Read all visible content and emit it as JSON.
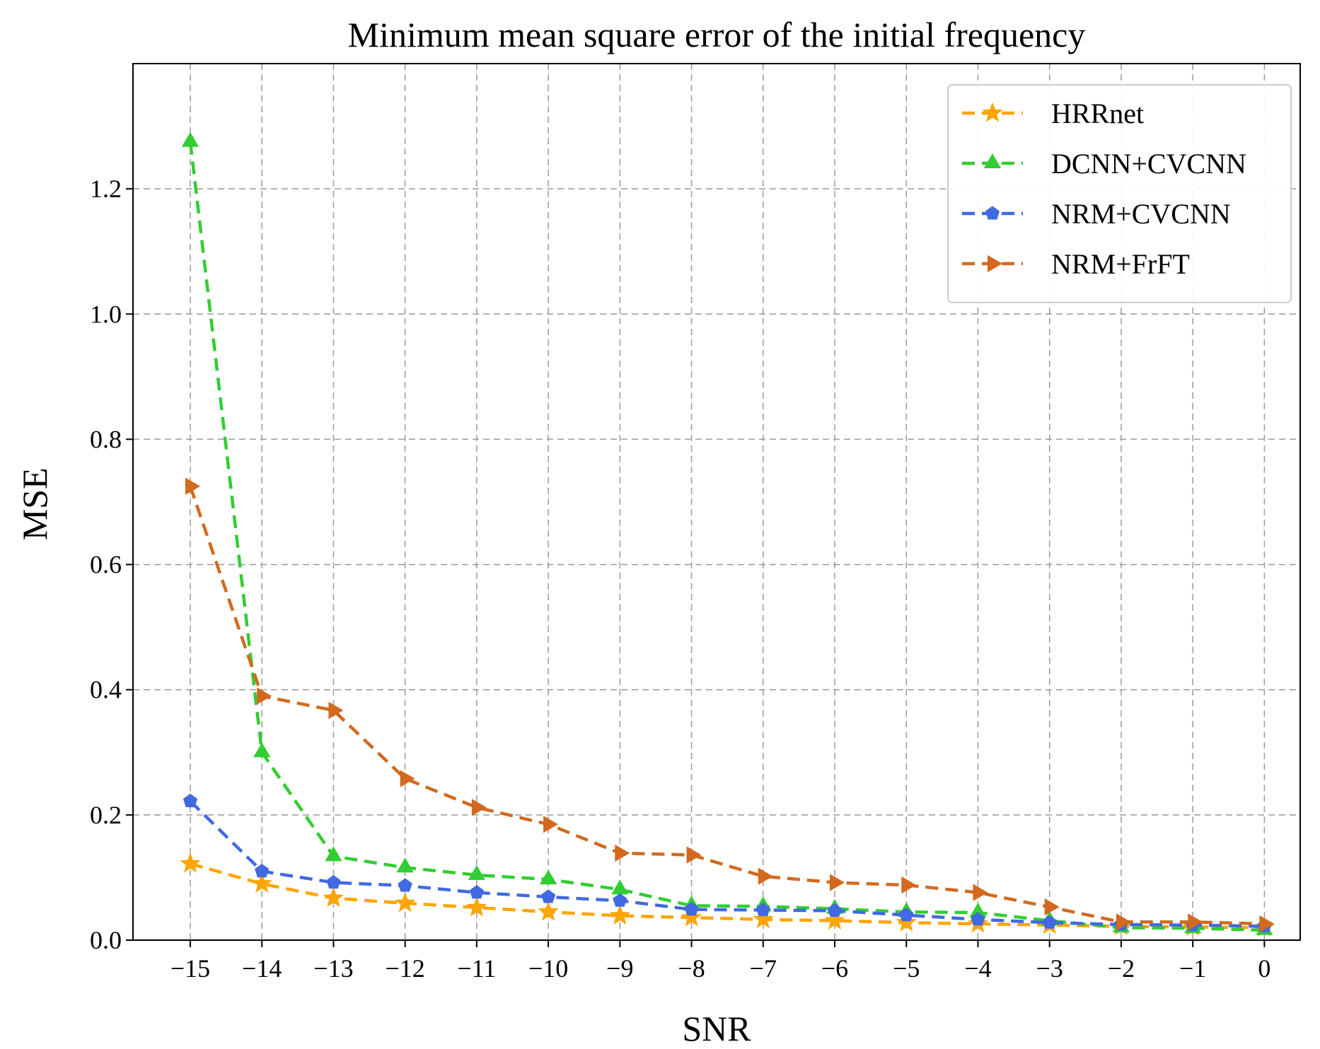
{
  "chart_data": {
    "type": "line",
    "title": "Minimum mean square error of the initial frequency",
    "xlabel": "SNR",
    "ylabel": "MSE",
    "x": [
      -15,
      -14,
      -13,
      -12,
      -11,
      -10,
      -9,
      -8,
      -7,
      -6,
      -5,
      -4,
      -3,
      -2,
      -1,
      0
    ],
    "x_tick_labels": [
      "−15",
      "−14",
      "−13",
      "−12",
      "−11",
      "−10",
      "−9",
      "−8",
      "−7",
      "−6",
      "−5",
      "−4",
      "−3",
      "−2",
      "−1",
      "0"
    ],
    "xlim": [
      -15.8,
      0.5
    ],
    "ylim": [
      0,
      1.4
    ],
    "y_ticks": [
      0.0,
      0.2,
      0.4,
      0.6,
      0.8,
      1.0,
      1.2
    ],
    "y_tick_labels": [
      "0.0",
      "0.2",
      "0.4",
      "0.6",
      "0.8",
      "1.0",
      "1.2"
    ],
    "grid": true,
    "legend_position": "top-right",
    "series": [
      {
        "name": "HRRnet",
        "color": "#FFA500",
        "marker": "star",
        "values": [
          0.122,
          0.09,
          0.067,
          0.059,
          0.052,
          0.045,
          0.039,
          0.036,
          0.033,
          0.031,
          0.028,
          0.026,
          0.024,
          0.022,
          0.021,
          0.02
        ]
      },
      {
        "name": "DCNN+CVCNN",
        "color": "#32CD32",
        "marker": "triangle-up",
        "values": [
          1.275,
          0.3,
          0.134,
          0.116,
          0.104,
          0.097,
          0.081,
          0.055,
          0.054,
          0.05,
          0.045,
          0.044,
          0.031,
          0.02,
          0.019,
          0.016
        ]
      },
      {
        "name": "NRM+CVCNN",
        "color": "#4169E1",
        "marker": "pentagon",
        "values": [
          0.222,
          0.11,
          0.092,
          0.087,
          0.076,
          0.069,
          0.063,
          0.049,
          0.048,
          0.047,
          0.04,
          0.033,
          0.028,
          0.025,
          0.024,
          0.022
        ]
      },
      {
        "name": "NRM+FrFT",
        "color": "#D2691E",
        "marker": "triangle-right",
        "values": [
          0.725,
          0.39,
          0.367,
          0.258,
          0.212,
          0.185,
          0.139,
          0.136,
          0.102,
          0.092,
          0.088,
          0.076,
          0.053,
          0.029,
          0.029,
          0.026
        ]
      }
    ]
  }
}
